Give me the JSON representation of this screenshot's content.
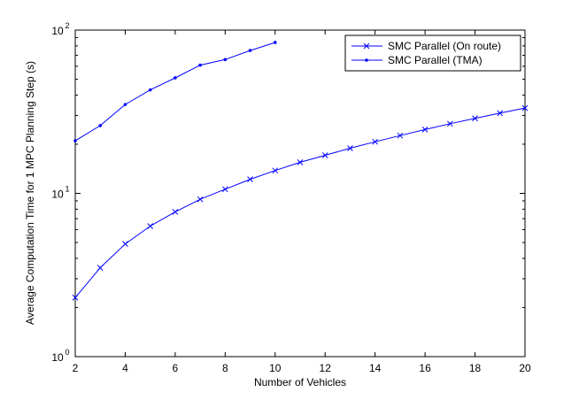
{
  "chart_data": {
    "type": "line",
    "xlabel": "Number of Vehicles",
    "ylabel": "Average Computation Time for 1 MPC Planning Step (s)",
    "xlim": [
      2,
      20
    ],
    "ylim": [
      1,
      100
    ],
    "yscale": "log",
    "grid": false,
    "legend_position": "top-right",
    "x_ticks": [
      2,
      4,
      6,
      8,
      10,
      12,
      14,
      16,
      18,
      20
    ],
    "y_ticks": [
      {
        "base": "10",
        "exp": "0",
        "value": 1
      },
      {
        "base": "10",
        "exp": "1",
        "value": 10
      },
      {
        "base": "10",
        "exp": "2",
        "value": 100
      }
    ],
    "series": [
      {
        "name": "SMC Parallel (On route)",
        "marker": "x",
        "color": "#0000ff",
        "x": [
          2,
          3,
          4,
          5,
          6,
          7,
          8,
          9,
          10,
          11,
          12,
          13,
          14,
          15,
          16,
          17,
          18,
          19,
          20
        ],
        "y": [
          2.3,
          3.5,
          4.9,
          6.3,
          7.7,
          9.2,
          10.6,
          12.2,
          13.8,
          15.5,
          17.1,
          18.9,
          20.7,
          22.6,
          24.6,
          26.7,
          28.8,
          31.0,
          33.3
        ]
      },
      {
        "name": "SMC Parallel (TMA)",
        "marker": "dot",
        "color": "#0000ff",
        "x": [
          2,
          3,
          4,
          5,
          6,
          7,
          8,
          9,
          10
        ],
        "y": [
          21,
          26,
          35,
          43,
          51,
          61,
          66,
          75,
          84
        ]
      }
    ]
  }
}
